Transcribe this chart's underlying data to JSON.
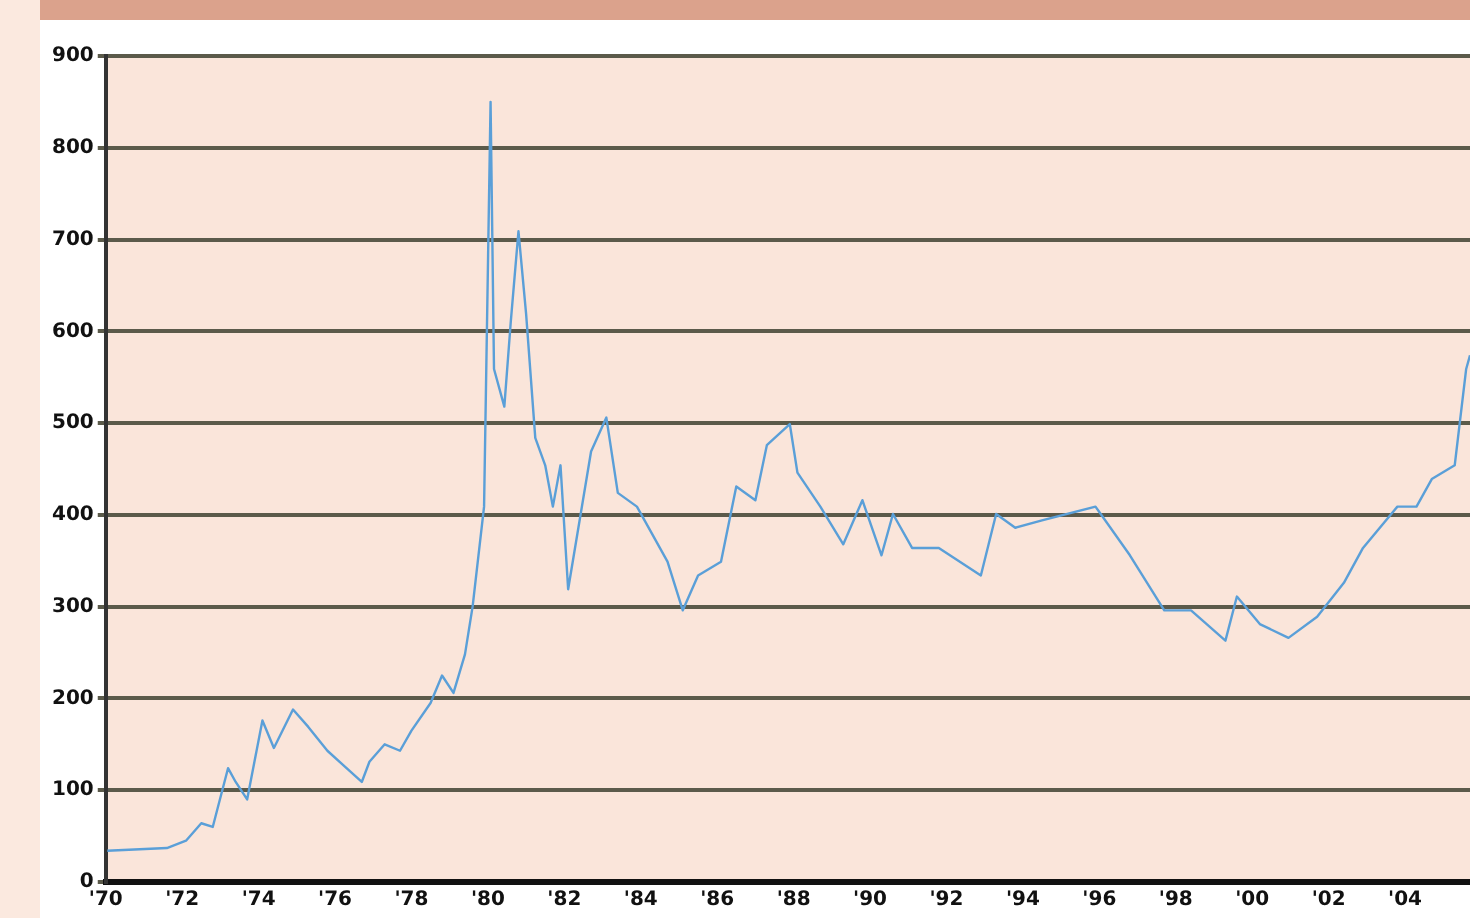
{
  "chart_data": {
    "type": "line",
    "x": [
      1970.04,
      1971.6,
      1972.1,
      1972.5,
      1972.8,
      1973.2,
      1973.4,
      1973.7,
      1974.1,
      1974.4,
      1974.9,
      1975.3,
      1975.8,
      1976.7,
      1976.9,
      1977.3,
      1977.7,
      1978.0,
      1978.5,
      1978.8,
      1979.1,
      1979.4,
      1979.6,
      1979.9,
      1980.07,
      1980.16,
      1980.43,
      1980.6,
      1980.8,
      1981.0,
      1981.24,
      1981.5,
      1981.7,
      1981.9,
      1982.1,
      1982.7,
      1983.1,
      1983.4,
      1983.9,
      1984.3,
      1984.7,
      1985.1,
      1985.5,
      1986.1,
      1986.5,
      1987.0,
      1987.3,
      1987.9,
      1988.1,
      1988.7,
      1989.3,
      1989.8,
      1990.3,
      1990.6,
      1991.1,
      1991.8,
      1992.9,
      1993.3,
      1993.8,
      1994.5,
      1995.9,
      1996.8,
      1997.7,
      1998.4,
      1999.3,
      1999.6,
      2000.2,
      2000.95,
      2001.7,
      2002.4,
      2002.9,
      2003.8,
      2004.3,
      2004.7,
      2005.3,
      2005.6,
      2005.7
    ],
    "series": [
      {
        "color": "#5a9fd8",
        "values": [
          34,
          37,
          45,
          64,
          60,
          124,
          109,
          90,
          176,
          146,
          188,
          169,
          143,
          109,
          131,
          150,
          143,
          165,
          195,
          225,
          206,
          248,
          300,
          409,
          850,
          559,
          518,
          611,
          709,
          619,
          484,
          454,
          409,
          454,
          319,
          469,
          506,
          424,
          409,
          379,
          349,
          296,
          334,
          349,
          431,
          416,
          476,
          499,
          446,
          409,
          368,
          416,
          356,
          401,
          364,
          364,
          334,
          401,
          386,
          394,
          409,
          356,
          296,
          296,
          263,
          311,
          281,
          266,
          289,
          326,
          364,
          409,
          409,
          439,
          454,
          559,
          574
        ]
      }
    ],
    "xlim": [
      1970,
      2005.7
    ],
    "xticks": [
      {
        "value": 1970,
        "label": "'70"
      },
      {
        "value": 1972,
        "label": "'72"
      },
      {
        "value": 1974,
        "label": "'74"
      },
      {
        "value": 1976,
        "label": "'76"
      },
      {
        "value": 1978,
        "label": "'78"
      },
      {
        "value": 1980,
        "label": "'80"
      },
      {
        "value": 1982,
        "label": "'82"
      },
      {
        "value": 1984,
        "label": "'84"
      },
      {
        "value": 1986,
        "label": "'86"
      },
      {
        "value": 1988,
        "label": "'88"
      },
      {
        "value": 1990,
        "label": "'90"
      },
      {
        "value": 1992,
        "label": "'92"
      },
      {
        "value": 1994,
        "label": "'94"
      },
      {
        "value": 1996,
        "label": "'96"
      },
      {
        "value": 1998,
        "label": "'98"
      },
      {
        "value": 2000,
        "label": "'00"
      },
      {
        "value": 2002,
        "label": "'02"
      },
      {
        "value": 2004,
        "label": "'04"
      }
    ],
    "ylim": [
      0,
      900
    ],
    "yticks": [
      0,
      100,
      200,
      300,
      400,
      500,
      600,
      700,
      800,
      900
    ],
    "grid": "y",
    "marker": "none",
    "line_style": "solid"
  }
}
